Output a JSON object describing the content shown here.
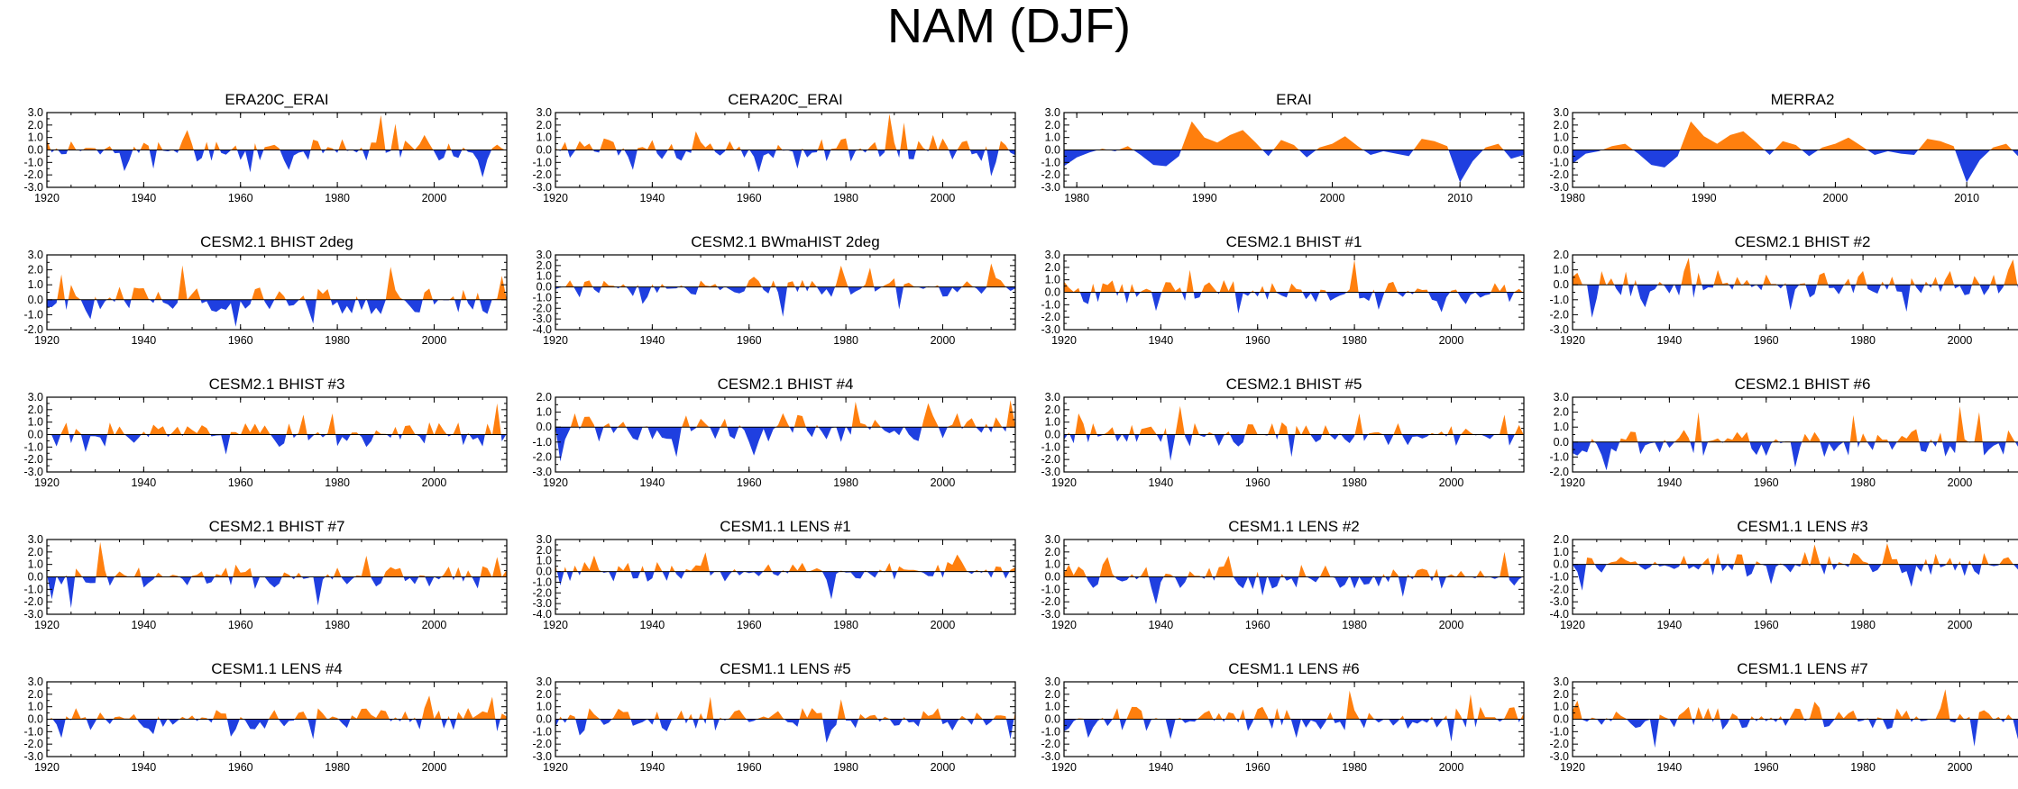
{
  "title": "NAM (DJF)",
  "colors": {
    "positive": "#ff7f0e",
    "negative": "#1f3fe0",
    "axis": "#000000"
  },
  "chart_data": [
    {
      "type": "area",
      "title": "ERA20C_ERAI",
      "xlim": [
        1920,
        2015
      ],
      "ylim": [
        -3,
        3
      ],
      "yticks": [
        "-3.0",
        "-2.0",
        "-1.0",
        "0.0",
        "1.0",
        "2.0",
        "3.0"
      ],
      "xticks": [
        1920,
        1940,
        1960,
        1980,
        2000
      ],
      "seed": 11,
      "peaks": [
        [
          1989,
          2.8
        ],
        [
          1992,
          2.1
        ],
        [
          1949,
          1.6
        ],
        [
          1998,
          1.2
        ],
        [
          2010,
          -2.2
        ],
        [
          1962,
          -1.8
        ],
        [
          1970,
          -1.6
        ],
        [
          1936,
          -1.7
        ],
        [
          1942,
          -1.5
        ]
      ]
    },
    {
      "type": "area",
      "title": "CERA20C_ERAI",
      "xlim": [
        1920,
        2015
      ],
      "ylim": [
        -3,
        3
      ],
      "yticks": [
        "-3.0",
        "-2.0",
        "-1.0",
        "0.0",
        "1.0",
        "2.0",
        "3.0"
      ],
      "xticks": [
        1920,
        1940,
        1960,
        1980,
        2000
      ],
      "seed": 12,
      "peaks": [
        [
          1989,
          2.9
        ],
        [
          1992,
          2.2
        ],
        [
          1949,
          1.5
        ],
        [
          1998,
          1.2
        ],
        [
          2010,
          -2.1
        ],
        [
          1962,
          -1.8
        ],
        [
          1970,
          -1.5
        ],
        [
          1936,
          -1.6
        ]
      ]
    },
    {
      "type": "area",
      "title": "ERAI",
      "xlim": [
        1979,
        2015
      ],
      "ylim": [
        -3,
        3
      ],
      "yticks": [
        "-3.0",
        "-2.0",
        "-1.0",
        "0.0",
        "1.0",
        "2.0",
        "3.0"
      ],
      "xticks": [
        1980,
        1990,
        2000,
        2010
      ],
      "seed": 13,
      "values": [
        -1.3,
        -0.6,
        -0.2,
        0.1,
        -0.1,
        0.3,
        -0.4,
        -1.2,
        -1.3,
        -0.5,
        2.3,
        1.0,
        0.6,
        1.2,
        1.6,
        0.6,
        -0.5,
        0.8,
        0.4,
        -0.6,
        0.2,
        0.5,
        1.1,
        0.3,
        -0.4,
        -0.1,
        -0.3,
        -0.5,
        0.9,
        0.7,
        0.3,
        -2.6,
        -0.9,
        0.2,
        0.5,
        -0.7,
        -0.4
      ]
    },
    {
      "type": "area",
      "title": "MERRA2",
      "xlim": [
        1980,
        2015
      ],
      "ylim": [
        -3,
        3
      ],
      "yticks": [
        "-3.0",
        "-2.0",
        "-1.0",
        "0.0",
        "1.0",
        "2.0",
        "3.0"
      ],
      "xticks": [
        1980,
        1990,
        2000,
        2010
      ],
      "seed": 14,
      "values": [
        -1.1,
        -0.3,
        -0.1,
        0.3,
        0.5,
        -0.3,
        -1.2,
        -1.4,
        -0.5,
        2.3,
        1.1,
        0.5,
        1.2,
        1.5,
        0.6,
        -0.4,
        0.7,
        0.4,
        -0.5,
        0.2,
        0.5,
        1.0,
        0.3,
        -0.4,
        -0.1,
        -0.3,
        -0.4,
        0.9,
        0.7,
        0.3,
        -2.6,
        -0.8,
        0.2,
        0.5,
        -0.6,
        -0.3
      ]
    },
    {
      "type": "area",
      "title": "CESM2.1 BHIST 2deg",
      "xlim": [
        1920,
        2015
      ],
      "ylim": [
        -2,
        3
      ],
      "yticks": [
        "-2.0",
        "-1.0",
        "0.0",
        "1.0",
        "2.0",
        "3.0"
      ],
      "xticks": [
        1920,
        1940,
        1960,
        1980,
        2000
      ],
      "seed": 21,
      "peaks": [
        [
          1948,
          2.3
        ],
        [
          1923,
          1.7
        ],
        [
          1991,
          2.2
        ],
        [
          2014,
          1.6
        ],
        [
          1959,
          -1.8
        ],
        [
          1929,
          -1.3
        ],
        [
          1975,
          -1.6
        ]
      ]
    },
    {
      "type": "area",
      "title": "CESM2.1 BWmaHIST 2deg",
      "xlim": [
        1920,
        2015
      ],
      "ylim": [
        -4,
        3
      ],
      "yticks": [
        "-4.0",
        "-3.0",
        "-2.0",
        "-1.0",
        "0.0",
        "1.0",
        "2.0",
        "3.0"
      ],
      "xticks": [
        1920,
        1940,
        1960,
        1980,
        2000
      ],
      "seed": 22,
      "peaks": [
        [
          2010,
          2.2
        ],
        [
          1979,
          2.0
        ],
        [
          1967,
          -2.8
        ],
        [
          1991,
          -2.1
        ],
        [
          1938,
          -1.6
        ],
        [
          1985,
          1.8
        ]
      ]
    },
    {
      "type": "area",
      "title": "CESM2.1 BHIST #1",
      "xlim": [
        1920,
        2015
      ],
      "ylim": [
        -3,
        3
      ],
      "yticks": [
        "-3.0",
        "-2.0",
        "-1.0",
        "0.0",
        "1.0",
        "2.0",
        "3.0"
      ],
      "xticks": [
        1920,
        1940,
        1960,
        1980,
        2000
      ],
      "seed": 23,
      "peaks": [
        [
          1980,
          2.6
        ],
        [
          1946,
          1.8
        ],
        [
          1956,
          -1.7
        ],
        [
          1939,
          -1.5
        ],
        [
          1998,
          -1.6
        ],
        [
          1985,
          -1.4
        ]
      ]
    },
    {
      "type": "area",
      "title": "CESM2.1 BHIST #2",
      "xlim": [
        1920,
        2015
      ],
      "ylim": [
        -3,
        2
      ],
      "yticks": [
        "-3.0",
        "-2.0",
        "-1.0",
        "0.0",
        "1.0",
        "2.0"
      ],
      "xticks": [
        1920,
        1940,
        1960,
        1980,
        2000
      ],
      "seed": 24,
      "peaks": [
        [
          1924,
          -2.2
        ],
        [
          1944,
          1.8
        ],
        [
          2011,
          1.7
        ],
        [
          1965,
          -1.7
        ],
        [
          1989,
          -1.8
        ],
        [
          1935,
          -1.5
        ]
      ]
    },
    {
      "type": "area",
      "title": "CESM2.1 BHIST #3",
      "xlim": [
        1920,
        2015
      ],
      "ylim": [
        -3,
        3
      ],
      "yticks": [
        "-3.0",
        "-2.0",
        "-1.0",
        "0.0",
        "1.0",
        "2.0",
        "3.0"
      ],
      "xticks": [
        1920,
        1940,
        1960,
        1980,
        2000
      ],
      "seed": 31,
      "peaks": [
        [
          2013,
          2.5
        ],
        [
          1973,
          1.6
        ],
        [
          1957,
          -1.6
        ],
        [
          1928,
          -1.4
        ],
        [
          1979,
          1.7
        ]
      ]
    },
    {
      "type": "area",
      "title": "CESM2.1 BHIST #4",
      "xlim": [
        1920,
        2015
      ],
      "ylim": [
        -3,
        2
      ],
      "yticks": [
        "-3.0",
        "-2.0",
        "-1.0",
        "0.0",
        "1.0",
        "2.0"
      ],
      "xticks": [
        1920,
        1940,
        1960,
        1980,
        2000
      ],
      "seed": 32,
      "peaks": [
        [
          1921,
          -2.3
        ],
        [
          1982,
          1.7
        ],
        [
          2014,
          1.8
        ],
        [
          1945,
          -2.0
        ],
        [
          1961,
          -1.9
        ],
        [
          1997,
          1.6
        ]
      ]
    },
    {
      "type": "area",
      "title": "CESM2.1 BHIST #5",
      "xlim": [
        1920,
        2015
      ],
      "ylim": [
        -3,
        3
      ],
      "yticks": [
        "-3.0",
        "-2.0",
        "-1.0",
        "0.0",
        "1.0",
        "2.0",
        "3.0"
      ],
      "xticks": [
        1920,
        1940,
        1960,
        1980,
        2000
      ],
      "seed": 33,
      "peaks": [
        [
          1944,
          2.3
        ],
        [
          1923,
          1.7
        ],
        [
          1942,
          -2.1
        ],
        [
          1967,
          -1.8
        ],
        [
          1981,
          1.7
        ],
        [
          2011,
          1.6
        ]
      ]
    },
    {
      "type": "area",
      "title": "CESM2.1 BHIST #6",
      "xlim": [
        1920,
        2015
      ],
      "ylim": [
        -2,
        3
      ],
      "yticks": [
        "-2.0",
        "-1.0",
        "0.0",
        "1.0",
        "2.0",
        "3.0"
      ],
      "xticks": [
        1920,
        1940,
        1960,
        1980,
        2000
      ],
      "seed": 34,
      "peaks": [
        [
          2000,
          2.4
        ],
        [
          2004,
          2.0
        ],
        [
          1927,
          -1.9
        ],
        [
          1946,
          2.0
        ],
        [
          1978,
          1.8
        ],
        [
          1966,
          -1.7
        ]
      ]
    },
    {
      "type": "area",
      "title": "CESM2.1 BHIST #7",
      "xlim": [
        1920,
        2015
      ],
      "ylim": [
        -3,
        3
      ],
      "yticks": [
        "-3.0",
        "-2.0",
        "-1.0",
        "0.0",
        "1.0",
        "2.0",
        "3.0"
      ],
      "xticks": [
        1920,
        1940,
        1960,
        1980,
        2000
      ],
      "seed": 41,
      "peaks": [
        [
          1931,
          2.8
        ],
        [
          1925,
          -2.5
        ],
        [
          1976,
          -2.3
        ],
        [
          1986,
          1.7
        ],
        [
          2013,
          1.6
        ],
        [
          1921,
          -1.8
        ]
      ]
    },
    {
      "type": "area",
      "title": "CESM1.1 LENS #1",
      "xlim": [
        1920,
        2015
      ],
      "ylim": [
        -4,
        3
      ],
      "yticks": [
        "-4.0",
        "-3.0",
        "-2.0",
        "-1.0",
        "0.0",
        "1.0",
        "2.0",
        "3.0"
      ],
      "xticks": [
        1920,
        1940,
        1960,
        1980,
        2000
      ],
      "seed": 42,
      "peaks": [
        [
          1977,
          -2.6
        ],
        [
          1951,
          1.8
        ],
        [
          2003,
          1.6
        ],
        [
          1928,
          1.5
        ],
        [
          1921,
          -1.3
        ]
      ]
    },
    {
      "type": "area",
      "title": "CESM1.1 LENS #2",
      "xlim": [
        1920,
        2015
      ],
      "ylim": [
        -3,
        3
      ],
      "yticks": [
        "-3.0",
        "-2.0",
        "-1.0",
        "0.0",
        "1.0",
        "2.0",
        "3.0"
      ],
      "xticks": [
        1920,
        1940,
        1960,
        1980,
        2000
      ],
      "seed": 43,
      "peaks": [
        [
          1939,
          -2.2
        ],
        [
          2011,
          2.0
        ],
        [
          1961,
          -1.5
        ],
        [
          1990,
          -1.6
        ],
        [
          1929,
          1.6
        ],
        [
          1954,
          1.7
        ]
      ]
    },
    {
      "type": "area",
      "title": "CESM1.1 LENS #3",
      "xlim": [
        1920,
        2015
      ],
      "ylim": [
        -4,
        2
      ],
      "yticks": [
        "-4.0",
        "-3.0",
        "-2.0",
        "-1.0",
        "0.0",
        "1.0",
        "2.0"
      ],
      "xticks": [
        1920,
        1940,
        1960,
        1980,
        2000
      ],
      "seed": 44,
      "peaks": [
        [
          1922,
          -2.1
        ],
        [
          1970,
          1.6
        ],
        [
          1985,
          1.7
        ],
        [
          1990,
          -1.8
        ],
        [
          2014,
          -1.7
        ],
        [
          1961,
          -1.6
        ]
      ]
    },
    {
      "type": "area",
      "title": "CESM1.1 LENS #4",
      "xlim": [
        1920,
        2015
      ],
      "ylim": [
        -3,
        3
      ],
      "yticks": [
        "-3.0",
        "-2.0",
        "-1.0",
        "0.0",
        "1.0",
        "2.0",
        "3.0"
      ],
      "xticks": [
        1920,
        1940,
        1960,
        1980,
        2000
      ],
      "seed": 51,
      "peaks": [
        [
          1999,
          1.9
        ],
        [
          2012,
          1.8
        ],
        [
          1975,
          -1.6
        ],
        [
          1923,
          -1.5
        ],
        [
          1958,
          -1.4
        ],
        [
          1942,
          -1.2
        ]
      ]
    },
    {
      "type": "area",
      "title": "CESM1.1 LENS #5",
      "xlim": [
        1920,
        2015
      ],
      "ylim": [
        -3,
        3
      ],
      "yticks": [
        "-3.0",
        "-2.0",
        "-1.0",
        "0.0",
        "1.0",
        "2.0",
        "3.0"
      ],
      "xticks": [
        1920,
        1940,
        1960,
        1980,
        2000
      ],
      "seed": 52,
      "peaks": [
        [
          1976,
          -1.9
        ],
        [
          2014,
          -1.6
        ],
        [
          1952,
          1.8
        ],
        [
          1979,
          1.6
        ],
        [
          1925,
          -1.3
        ]
      ]
    },
    {
      "type": "area",
      "title": "CESM1.1 LENS #6",
      "xlim": [
        1920,
        2015
      ],
      "ylim": [
        -3,
        3
      ],
      "yticks": [
        "-3.0",
        "-2.0",
        "-1.0",
        "0.0",
        "1.0",
        "2.0",
        "3.0"
      ],
      "xticks": [
        1920,
        1940,
        1960,
        1980,
        2000
      ],
      "seed": 53,
      "peaks": [
        [
          1979,
          2.3
        ],
        [
          2004,
          2.0
        ],
        [
          1925,
          -1.5
        ],
        [
          1942,
          -1.6
        ],
        [
          2000,
          -1.8
        ],
        [
          1968,
          -1.5
        ]
      ]
    },
    {
      "type": "area",
      "title": "CESM1.1 LENS #7",
      "xlim": [
        1920,
        2015
      ],
      "ylim": [
        -3,
        3
      ],
      "yticks": [
        "-3.0",
        "-2.0",
        "-1.0",
        "0.0",
        "1.0",
        "2.0",
        "3.0"
      ],
      "xticks": [
        1920,
        1940,
        1960,
        1980,
        2000
      ],
      "seed": 54,
      "peaks": [
        [
          1937,
          -2.3
        ],
        [
          1997,
          2.4
        ],
        [
          2003,
          -2.2
        ],
        [
          1921,
          1.5
        ],
        [
          2012,
          -1.6
        ],
        [
          1970,
          1.4
        ]
      ]
    }
  ]
}
